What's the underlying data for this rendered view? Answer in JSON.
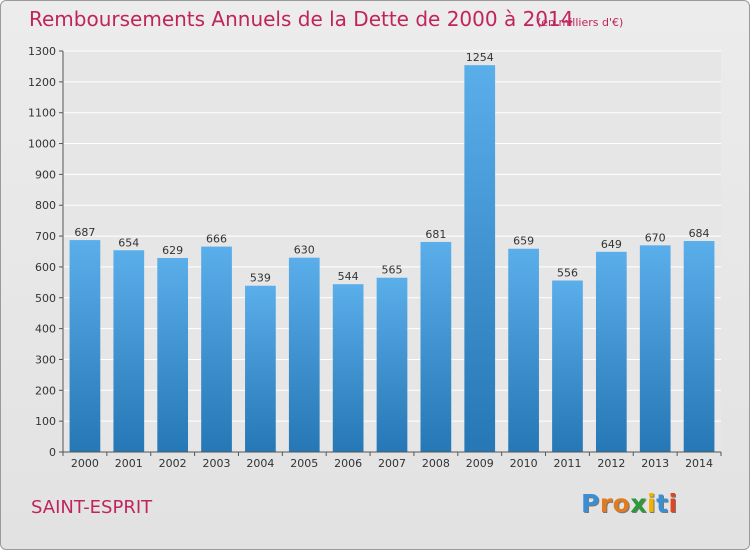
{
  "title": "Remboursements Annuels de la Dette de 2000 à 2014",
  "unit": "(en milliers d'€)",
  "commune": "SAINT-ESPRIT",
  "logo": {
    "letters": [
      "P",
      "r",
      "o",
      "x",
      "i",
      "t",
      "i"
    ],
    "colors": [
      "#3a8fd4",
      "#e07b1f",
      "#e07b1f",
      "#2a9a3a",
      "#f0b400",
      "#3a8fd4",
      "#e0461f"
    ]
  },
  "colors": {
    "bar_top": "#5aaeea",
    "bar_bottom": "#2677b5",
    "title": "#c0245c",
    "grid": "#ffffff"
  },
  "chart_data": {
    "type": "bar",
    "categories": [
      "2000",
      "2001",
      "2002",
      "2003",
      "2004",
      "2005",
      "2006",
      "2007",
      "2008",
      "2009",
      "2010",
      "2011",
      "2012",
      "2013",
      "2014"
    ],
    "values": [
      687,
      654,
      629,
      666,
      539,
      630,
      544,
      565,
      681,
      1254,
      659,
      556,
      649,
      670,
      684
    ],
    "ylim": [
      0,
      1300
    ],
    "yticks": [
      0,
      100,
      200,
      300,
      400,
      500,
      600,
      700,
      800,
      900,
      1000,
      1100,
      1200,
      1300
    ],
    "grid": true,
    "data_labels": true
  }
}
